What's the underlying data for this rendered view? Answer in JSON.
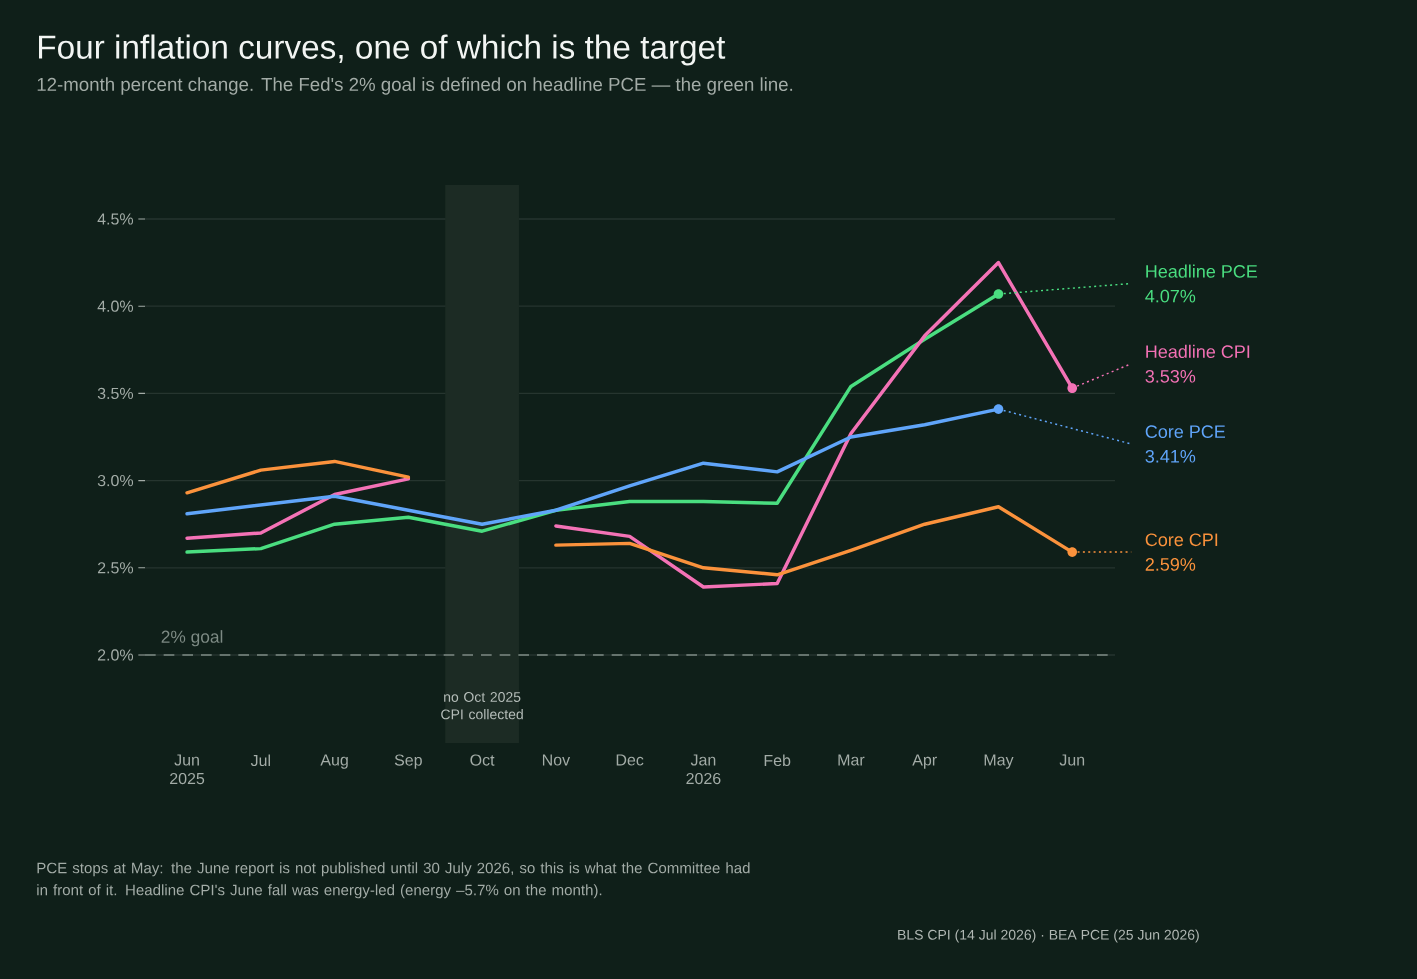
{
  "chart_data": {
    "type": "line",
    "title": "Four inflation curves, one of which is the target",
    "subtitle": "12-month percent change. The Fed's 2% goal is defined on headline PCE — the green line.",
    "categories": [
      "Jun 2025",
      "Jul",
      "Aug",
      "Sep",
      "Oct",
      "Nov",
      "Dec",
      "Jan 2026",
      "Feb",
      "Mar",
      "Apr",
      "May",
      "Jun"
    ],
    "series": [
      {
        "name": "Headline PCE",
        "color": "#4ade80",
        "values": [
          2.59,
          2.61,
          2.75,
          2.79,
          2.71,
          2.83,
          2.88,
          2.88,
          2.87,
          3.54,
          3.81,
          4.07,
          null
        ],
        "value_labels": [
          null,
          null,
          null,
          null,
          null,
          null,
          null,
          null,
          null,
          null,
          null,
          "4.07%",
          null
        ]
      },
      {
        "name": "Headline CPI",
        "color": "#f472b6",
        "values": [
          2.67,
          2.7,
          2.92,
          3.01,
          null,
          2.74,
          2.68,
          2.39,
          2.41,
          3.27,
          3.83,
          4.25,
          3.53
        ],
        "value_labels": [
          null,
          null,
          null,
          null,
          null,
          null,
          null,
          null,
          null,
          null,
          null,
          null,
          "3.53%"
        ]
      },
      {
        "name": "Core PCE",
        "color": "#60a5fa",
        "values": [
          2.81,
          2.86,
          2.91,
          2.83,
          2.75,
          2.83,
          2.97,
          3.1,
          3.05,
          3.25,
          3.32,
          3.41,
          null
        ],
        "value_labels": [
          null,
          null,
          null,
          null,
          null,
          null,
          null,
          null,
          null,
          null,
          null,
          "3.41%",
          null
        ]
      },
      {
        "name": "Core CPI",
        "color": "#fb923c",
        "values": [
          2.93,
          3.06,
          3.11,
          3.02,
          null,
          2.63,
          2.64,
          2.5,
          2.46,
          2.6,
          2.75,
          2.85,
          2.59
        ],
        "value_labels": [
          null,
          null,
          null,
          null,
          null,
          null,
          null,
          null,
          null,
          null,
          null,
          null,
          "2.59%"
        ]
      }
    ],
    "yticks": [
      {
        "value": 2.0,
        "label": "2.0%"
      },
      {
        "value": 2.5,
        "label": "2.5%"
      },
      {
        "value": 3.0,
        "label": "3.0%"
      },
      {
        "value": 3.5,
        "label": "3.5%"
      },
      {
        "value": 4.0,
        "label": "4.0%"
      },
      {
        "value": 4.5,
        "label": "4.5%"
      }
    ],
    "ylim": [
      2.0,
      4.5
    ],
    "grid": "y",
    "ref_lines": [
      {
        "axis": "y",
        "value": 2.0,
        "label": "2% goal",
        "color": "#7d8a84",
        "line_style": "dashed"
      }
    ],
    "bands": [
      {
        "axis": "x",
        "from": "Oct",
        "to": "Oct",
        "label": "no Oct 2025 CPI collected",
        "color": "#1c2b24"
      }
    ],
    "annotations": [
      "PCE stops at May: the June report is not published until 30 July 2026, so this is what the Committee had in front of it. Headline CPI's June fall was energy-led (energy –5.7% on the month).",
      "BLS CPI (14 Jul 2026) · BEA PCE (25 Jun 2026)"
    ]
  }
}
